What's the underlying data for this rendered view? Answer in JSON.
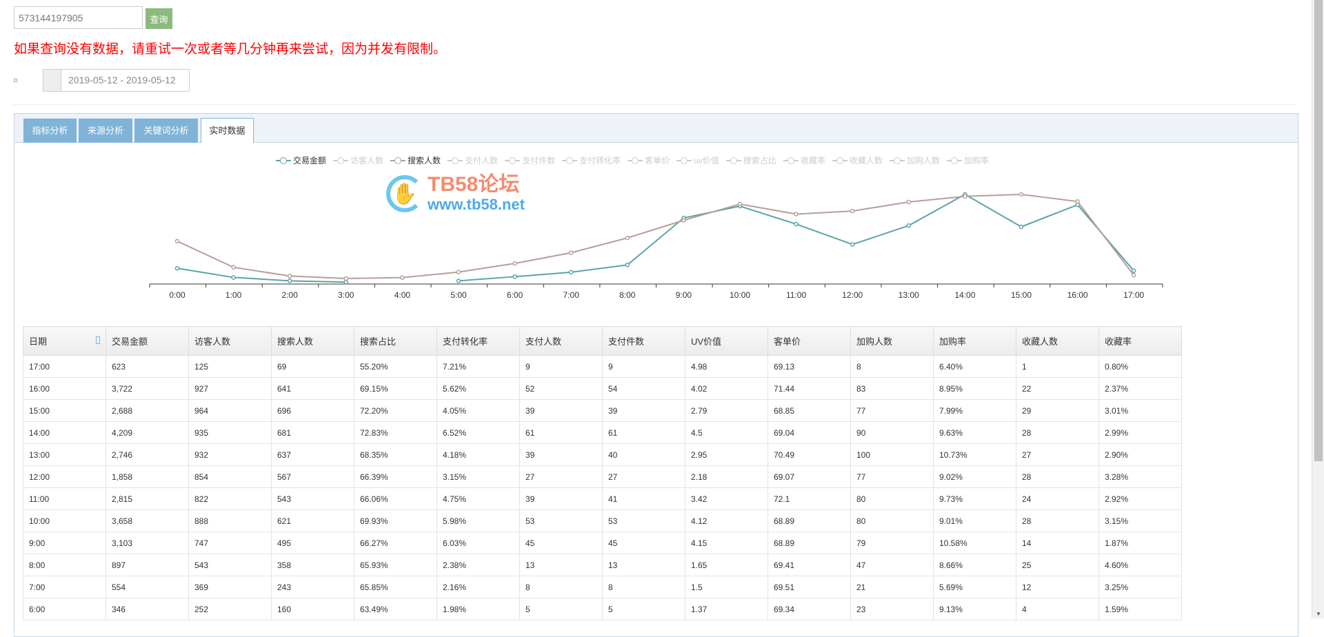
{
  "search": {
    "value": "573144197905",
    "button": "查询"
  },
  "notice": "如果查询没有数据，请重试一次或者等几分钟再来尝试，因为并发有限制。",
  "date_range": "2019-05-12 - 2019-05-12",
  "tabs": [
    {
      "label": "指标分析",
      "active": false
    },
    {
      "label": "来源分析",
      "active": false
    },
    {
      "label": "关键词分析",
      "active": false
    },
    {
      "label": "实时数据",
      "active": true
    }
  ],
  "watermark": {
    "title": "TB58论坛",
    "url": "www.tb58.net"
  },
  "colors": {
    "series_amount": "#5aa3a9",
    "series_search": "#b79e9a",
    "tab": "#7fb3d8",
    "query_button": "#8cba7e",
    "notice": "#ff0000"
  },
  "chart_data": {
    "type": "line",
    "legend": [
      {
        "label": "交易金额",
        "active": true
      },
      {
        "label": "访客人数",
        "active": false
      },
      {
        "label": "搜索人数",
        "active": true
      },
      {
        "label": "支付人数",
        "active": false
      },
      {
        "label": "支付件数",
        "active": false
      },
      {
        "label": "支付转化率",
        "active": false
      },
      {
        "label": "客单价",
        "active": false
      },
      {
        "label": "uv价值",
        "active": false
      },
      {
        "label": "搜索占比",
        "active": false
      },
      {
        "label": "收藏率",
        "active": false
      },
      {
        "label": "收藏人数",
        "active": false
      },
      {
        "label": "加购人数",
        "active": false
      },
      {
        "label": "加购率",
        "active": false
      }
    ],
    "categories": [
      "0:00",
      "1:00",
      "2:00",
      "3:00",
      "4:00",
      "5:00",
      "6:00",
      "7:00",
      "8:00",
      "9:00",
      "10:00",
      "11:00",
      "12:00",
      "13:00",
      "14:00",
      "15:00",
      "16:00",
      "17:00"
    ],
    "series": [
      {
        "name": "交易金额",
        "color": "#5aa3a9",
        "values": [
          740,
          310,
          150,
          90,
          null,
          150,
          346,
          554,
          897,
          3103,
          3658,
          2815,
          1858,
          2746,
          4209,
          2688,
          3722,
          623
        ]
      },
      {
        "name": "搜索人数",
        "color": "#b79e9a",
        "values": [
          333,
          130,
          62,
          43,
          50,
          93,
          160,
          243,
          358,
          495,
          621,
          543,
          567,
          637,
          681,
          696,
          641,
          69
        ]
      }
    ],
    "legend_position": "top",
    "grid": false,
    "y_axis_visible": false
  },
  "table": {
    "headers": [
      "日期",
      "交易金额",
      "访客人数",
      "搜索人数",
      "搜索占比",
      "支付转化率",
      "支付人数",
      "支付件数",
      "UV价值",
      "客单价",
      "加购人数",
      "加购率",
      "收藏人数",
      "收藏率"
    ],
    "rows": [
      [
        "17:00",
        "623",
        "125",
        "69",
        "55.20%",
        "7.21%",
        "9",
        "9",
        "4.98",
        "69.13",
        "8",
        "6.40%",
        "1",
        "0.80%"
      ],
      [
        "16:00",
        "3,722",
        "927",
        "641",
        "69.15%",
        "5.62%",
        "52",
        "54",
        "4.02",
        "71.44",
        "83",
        "8.95%",
        "22",
        "2.37%"
      ],
      [
        "15:00",
        "2,688",
        "964",
        "696",
        "72.20%",
        "4.05%",
        "39",
        "39",
        "2.79",
        "68.85",
        "77",
        "7.99%",
        "29",
        "3.01%"
      ],
      [
        "14:00",
        "4,209",
        "935",
        "681",
        "72.83%",
        "6.52%",
        "61",
        "61",
        "4.5",
        "69.04",
        "90",
        "9.63%",
        "28",
        "2.99%"
      ],
      [
        "13:00",
        "2,746",
        "932",
        "637",
        "68.35%",
        "4.18%",
        "39",
        "40",
        "2.95",
        "70.49",
        "100",
        "10.73%",
        "27",
        "2.90%"
      ],
      [
        "12:00",
        "1,858",
        "854",
        "567",
        "66.39%",
        "3.15%",
        "27",
        "27",
        "2.18",
        "69.07",
        "77",
        "9.02%",
        "28",
        "3.28%"
      ],
      [
        "11:00",
        "2,815",
        "822",
        "543",
        "66.06%",
        "4.75%",
        "39",
        "41",
        "3.42",
        "72.1",
        "80",
        "9.73%",
        "24",
        "2.92%"
      ],
      [
        "10:00",
        "3,658",
        "888",
        "621",
        "69.93%",
        "5.98%",
        "53",
        "53",
        "4.12",
        "68.89",
        "80",
        "9.01%",
        "28",
        "3.15%"
      ],
      [
        "9:00",
        "3,103",
        "747",
        "495",
        "66.27%",
        "6.03%",
        "45",
        "45",
        "4.15",
        "68.89",
        "79",
        "10.58%",
        "14",
        "1.87%"
      ],
      [
        "8:00",
        "897",
        "543",
        "358",
        "65.93%",
        "2.38%",
        "13",
        "13",
        "1.65",
        "69.41",
        "47",
        "8.66%",
        "25",
        "4.60%"
      ],
      [
        "7:00",
        "554",
        "369",
        "243",
        "65.85%",
        "2.16%",
        "8",
        "8",
        "1.5",
        "69.51",
        "21",
        "5.69%",
        "12",
        "3.25%"
      ],
      [
        "6:00",
        "346",
        "252",
        "160",
        "63.49%",
        "1.98%",
        "5",
        "5",
        "1.37",
        "69.34",
        "23",
        "9.13%",
        "4",
        "1.59%"
      ]
    ]
  }
}
